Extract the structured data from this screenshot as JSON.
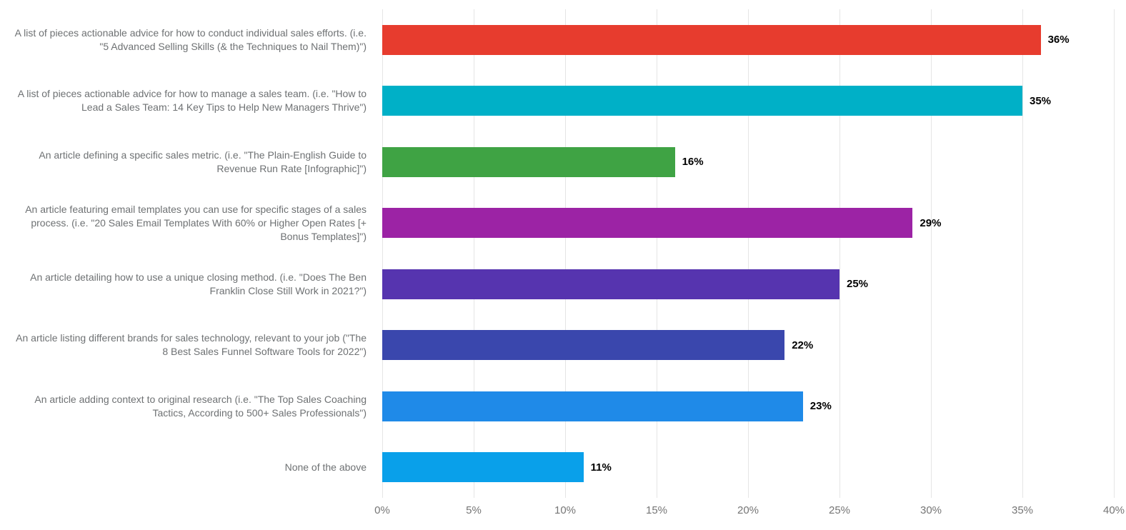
{
  "chart_data": {
    "type": "bar",
    "orientation": "horizontal",
    "title": "",
    "xlabel": "",
    "ylabel": "",
    "xlim": [
      0,
      40
    ],
    "grid": true,
    "legend": false,
    "background_color": "#ffffff",
    "gridline_color": "#e5e5e5",
    "axis_text_color": "#757575",
    "category_text_color": "#6e7173",
    "value_label_color": "#000000",
    "x_ticks": [
      "0%",
      "5%",
      "10%",
      "15%",
      "20%",
      "25%",
      "30%",
      "35%",
      "40%"
    ],
    "categories": [
      "A list of pieces actionable advice for how to conduct individual sales efforts. (i.e. \"5 Advanced Selling Skills (& the Techniques to Nail Them)\")",
      "A list of pieces actionable advice for how to manage a sales team. (i.e. \"How to Lead a Sales Team: 14 Key Tips to Help New Managers Thrive\")",
      "An article defining a specific sales metric. (i.e. \"The Plain-English Guide to Revenue Run Rate [Infographic]\")",
      "An article featuring email templates you can use for specific stages of a sales process. (i.e. \"20 Sales Email Templates With 60% or Higher Open Rates [+ Bonus Templates]\")",
      "An article detailing how to use a unique closing method. (i.e. \"Does The Ben Franklin Close Still Work in 2021?\")",
      "An article listing different brands for sales technology, relevant to your job (\"The 8 Best Sales Funnel Software Tools for 2022\")",
      "An article adding context to original research (i.e. \"The Top Sales Coaching Tactics, According to 500+ Sales Professionals\")",
      "None of the above"
    ],
    "values": [
      36,
      35,
      16,
      29,
      25,
      22,
      23,
      11
    ],
    "value_labels": [
      "36%",
      "35%",
      "16%",
      "29%",
      "25%",
      "22%",
      "23%",
      "11%"
    ],
    "bar_colors": [
      "#e73c2e",
      "#00b0c7",
      "#3fa344",
      "#9c23a5",
      "#5634af",
      "#3a47ad",
      "#1f8ae8",
      "#09a0ea"
    ]
  }
}
